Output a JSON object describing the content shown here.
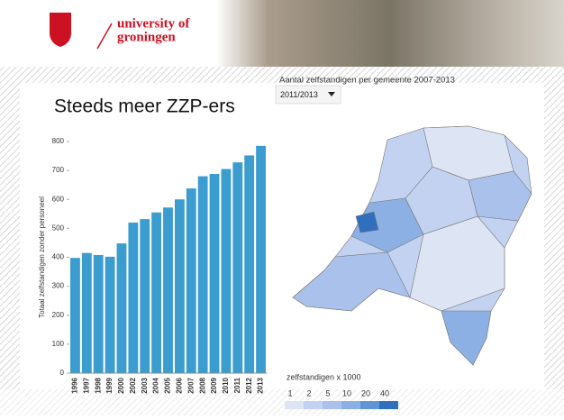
{
  "header": {
    "brand_line1": "university of",
    "brand_line2": "groningen"
  },
  "slide_title": "Steeds meer ZZP-ers",
  "map": {
    "title": "Aantal zelfstandigen per gemeente 2007-2013",
    "dropdown": "2011/2013",
    "legend_title": "zelfstandigen x 1000",
    "legend_ticks": [
      1,
      2,
      5,
      10,
      20,
      40
    ],
    "legend_colors": [
      "#dde5f5",
      "#c2d2f0",
      "#a9c1eb",
      "#8db0e4",
      "#5f95d6",
      "#2e6fbe"
    ]
  },
  "chart_data": {
    "type": "bar",
    "y_label": "Totaal zelfstandigen zonder personeel",
    "categories": [
      "1996",
      "1997",
      "1998",
      "1999",
      "2000",
      "2002",
      "2003",
      "2004",
      "2005",
      "2006",
      "2007",
      "2008",
      "2009",
      "2010",
      "2011",
      "2012",
      "2013"
    ],
    "values": [
      398,
      415,
      408,
      402,
      448,
      520,
      532,
      555,
      572,
      600,
      638,
      680,
      688,
      705,
      728,
      752,
      785
    ],
    "color": "#3a9ccf",
    "ylim": [
      0,
      800
    ],
    "yticks": [
      0,
      100,
      200,
      300,
      400,
      500,
      600,
      700,
      800
    ],
    "grid": false
  }
}
